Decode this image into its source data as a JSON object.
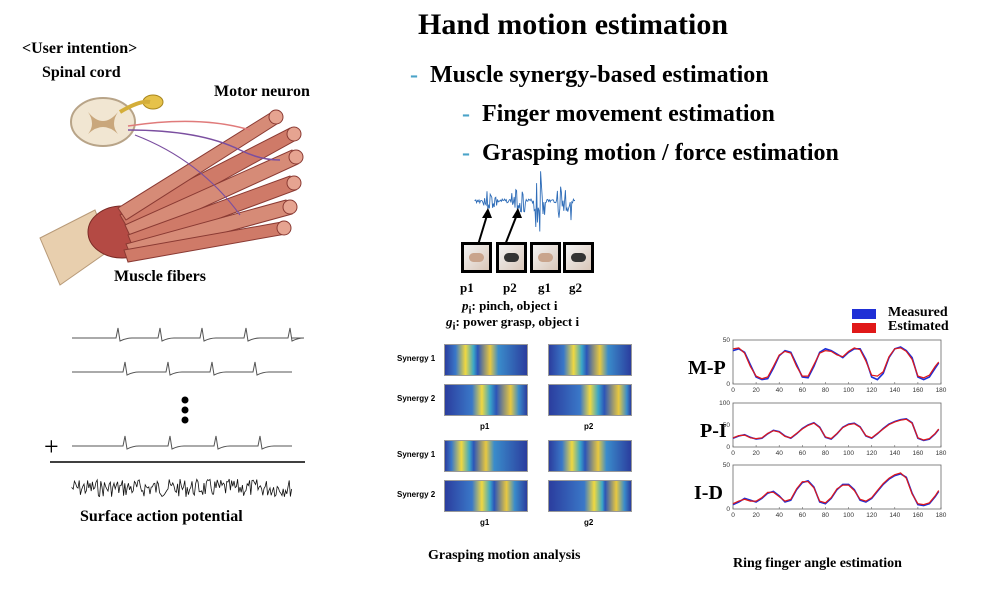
{
  "title": "Hand motion estimation",
  "bullets": [
    {
      "text": "Muscle synergy-based estimation",
      "level": 1
    },
    {
      "text": "Finger movement estimation",
      "level": 2
    },
    {
      "text": "Grasping motion / force estimation",
      "level": 2
    }
  ],
  "anatomy": {
    "user_intention": "<User intention>",
    "spinal_cord": "Spinal cord",
    "motor_neuron": "Motor neuron",
    "muscle_fibers": "Muscle fibers"
  },
  "action_potential": {
    "plus": "+",
    "caption": "Surface action potential"
  },
  "grasp": {
    "labels": [
      "p1",
      "p2",
      "g1",
      "g2"
    ],
    "legend_p_sym": "p",
    "legend_p_sub": "i",
    "legend_p_text": ": pinch, object i",
    "legend_g_sym": "g",
    "legend_g_sub": "i",
    "legend_g_text": ": power grasp, object i",
    "caption": "Grasping motion analysis",
    "synergy_1": "Synergy 1",
    "synergy_2": "Synergy 2",
    "panel_labels": [
      "p1",
      "p2",
      "g1",
      "g2"
    ]
  },
  "ring": {
    "caption": "Ring finger angle estimation",
    "legend_measured": "Measured",
    "legend_estimated": "Estimated",
    "colors": {
      "measured": "#1f2fd6",
      "estimated": "#e01818"
    },
    "joints": [
      "M-P",
      "P-I",
      "I-D"
    ]
  },
  "chart_data": [
    {
      "type": "line",
      "name": "M-P",
      "xlim": [
        0,
        180
      ],
      "ylim": [
        0,
        50
      ],
      "xticks": [
        0,
        20,
        40,
        60,
        80,
        100,
        120,
        140,
        160,
        180
      ],
      "yticks": [
        0,
        50
      ],
      "series": [
        {
          "name": "Measured",
          "x": [
            0,
            5,
            10,
            15,
            20,
            25,
            30,
            35,
            40,
            45,
            50,
            55,
            60,
            65,
            70,
            75,
            80,
            85,
            90,
            95,
            100,
            105,
            110,
            115,
            120,
            125,
            130,
            135,
            140,
            145,
            150,
            155,
            160,
            165,
            170,
            175,
            178
          ],
          "y": [
            38,
            40,
            36,
            22,
            8,
            5,
            6,
            18,
            32,
            38,
            36,
            22,
            8,
            7,
            20,
            36,
            40,
            38,
            34,
            30,
            36,
            40,
            40,
            28,
            8,
            5,
            12,
            30,
            40,
            42,
            38,
            30,
            8,
            5,
            8,
            18,
            24
          ]
        },
        {
          "name": "Estimated",
          "x": [
            0,
            5,
            10,
            15,
            20,
            25,
            30,
            35,
            40,
            45,
            50,
            55,
            60,
            65,
            70,
            75,
            80,
            85,
            90,
            95,
            100,
            105,
            110,
            115,
            120,
            125,
            130,
            135,
            140,
            145,
            150,
            155,
            160,
            165,
            170,
            175,
            178
          ],
          "y": [
            40,
            41,
            35,
            20,
            9,
            6,
            8,
            20,
            33,
            37,
            35,
            20,
            9,
            9,
            22,
            35,
            38,
            37,
            33,
            31,
            37,
            41,
            39,
            26,
            10,
            9,
            14,
            31,
            40,
            41,
            37,
            28,
            9,
            7,
            10,
            20,
            25
          ]
        }
      ]
    },
    {
      "type": "line",
      "name": "P-I",
      "xlim": [
        0,
        180
      ],
      "ylim": [
        0,
        100
      ],
      "xticks": [
        0,
        20,
        40,
        60,
        80,
        100,
        120,
        140,
        160,
        180
      ],
      "yticks": [
        0,
        50,
        100
      ],
      "series": [
        {
          "name": "Measured",
          "x": [
            0,
            5,
            10,
            15,
            20,
            25,
            30,
            35,
            40,
            45,
            50,
            55,
            60,
            65,
            70,
            75,
            80,
            85,
            90,
            95,
            100,
            105,
            110,
            115,
            120,
            125,
            130,
            135,
            140,
            145,
            150,
            155,
            160,
            165,
            170,
            175,
            178
          ],
          "y": [
            20,
            25,
            28,
            22,
            18,
            20,
            30,
            38,
            35,
            25,
            20,
            30,
            42,
            50,
            55,
            45,
            22,
            18,
            30,
            45,
            52,
            54,
            46,
            25,
            20,
            30,
            42,
            52,
            58,
            62,
            64,
            55,
            20,
            15,
            18,
            30,
            40
          ]
        },
        {
          "name": "Estimated",
          "x": [
            0,
            5,
            10,
            15,
            20,
            25,
            30,
            35,
            40,
            45,
            50,
            55,
            60,
            65,
            70,
            75,
            80,
            85,
            90,
            95,
            100,
            105,
            110,
            115,
            120,
            125,
            130,
            135,
            140,
            145,
            150,
            155,
            160,
            165,
            170,
            175,
            178
          ],
          "y": [
            21,
            26,
            27,
            21,
            19,
            21,
            31,
            37,
            34,
            24,
            21,
            31,
            41,
            49,
            54,
            44,
            23,
            19,
            31,
            44,
            51,
            53,
            45,
            26,
            21,
            31,
            41,
            51,
            57,
            61,
            63,
            54,
            21,
            16,
            19,
            31,
            41
          ]
        }
      ]
    },
    {
      "type": "line",
      "name": "I-D",
      "xlim": [
        0,
        180
      ],
      "ylim": [
        0,
        50
      ],
      "xticks": [
        0,
        20,
        40,
        60,
        80,
        100,
        120,
        140,
        160,
        180
      ],
      "yticks": [
        0,
        50
      ],
      "series": [
        {
          "name": "Measured",
          "x": [
            0,
            5,
            10,
            15,
            20,
            25,
            30,
            35,
            40,
            45,
            50,
            55,
            60,
            65,
            70,
            75,
            80,
            85,
            90,
            95,
            100,
            105,
            110,
            115,
            120,
            125,
            130,
            135,
            140,
            145,
            150,
            155,
            160,
            165,
            170,
            175,
            178
          ],
          "y": [
            5,
            8,
            12,
            10,
            8,
            12,
            18,
            20,
            15,
            8,
            10,
            22,
            30,
            32,
            25,
            8,
            6,
            12,
            22,
            28,
            28,
            22,
            10,
            8,
            12,
            20,
            28,
            34,
            38,
            40,
            36,
            18,
            5,
            4,
            6,
            14,
            20
          ]
        },
        {
          "name": "Estimated",
          "x": [
            0,
            5,
            10,
            15,
            20,
            25,
            30,
            35,
            40,
            45,
            50,
            55,
            60,
            65,
            70,
            75,
            80,
            85,
            90,
            95,
            100,
            105,
            110,
            115,
            120,
            125,
            130,
            135,
            140,
            145,
            150,
            155,
            160,
            165,
            170,
            175,
            178
          ],
          "y": [
            6,
            9,
            11,
            9,
            9,
            13,
            19,
            19,
            14,
            9,
            11,
            23,
            31,
            31,
            24,
            9,
            7,
            13,
            23,
            27,
            27,
            21,
            11,
            9,
            13,
            21,
            29,
            35,
            39,
            41,
            35,
            17,
            6,
            5,
            7,
            15,
            21
          ]
        }
      ]
    }
  ]
}
